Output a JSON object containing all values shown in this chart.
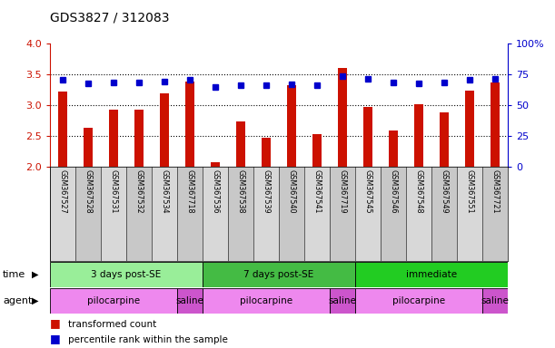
{
  "title": "GDS3827 / 312083",
  "samples": [
    "GSM367527",
    "GSM367528",
    "GSM367531",
    "GSM367532",
    "GSM367534",
    "GSM367718",
    "GSM367536",
    "GSM367538",
    "GSM367539",
    "GSM367540",
    "GSM367541",
    "GSM367719",
    "GSM367545",
    "GSM367546",
    "GSM367548",
    "GSM367549",
    "GSM367551",
    "GSM367721"
  ],
  "bar_values": [
    3.22,
    2.63,
    2.93,
    2.93,
    3.19,
    3.39,
    2.08,
    2.74,
    2.48,
    3.32,
    2.54,
    3.61,
    2.98,
    2.59,
    3.01,
    2.88,
    3.23,
    3.37
  ],
  "dot_values": [
    3.42,
    3.35,
    3.37,
    3.37,
    3.39,
    3.41,
    3.29,
    3.32,
    3.33,
    3.34,
    3.33,
    3.47,
    3.43,
    3.37,
    3.36,
    3.37,
    3.41,
    3.43
  ],
  "bar_color": "#cc1100",
  "dot_color": "#0000cc",
  "ylim_left": [
    2.0,
    4.0
  ],
  "ylim_right": [
    0,
    100
  ],
  "yticks_left": [
    2.0,
    2.5,
    3.0,
    3.5,
    4.0
  ],
  "yticks_right": [
    0,
    25,
    50,
    75,
    100
  ],
  "ytick_labels_right": [
    "0",
    "25",
    "50",
    "75",
    "100%"
  ],
  "hlines": [
    2.5,
    3.0,
    3.5
  ],
  "time_groups": [
    {
      "label": "3 days post-SE",
      "start": 0,
      "end": 5,
      "color": "#99ee99"
    },
    {
      "label": "7 days post-SE",
      "start": 6,
      "end": 11,
      "color": "#44bb44"
    },
    {
      "label": "immediate",
      "start": 12,
      "end": 17,
      "color": "#22cc22"
    }
  ],
  "agent_groups": [
    {
      "label": "pilocarpine",
      "start": 0,
      "end": 4,
      "color": "#ee88ee"
    },
    {
      "label": "saline",
      "start": 5,
      "end": 5,
      "color": "#cc55cc"
    },
    {
      "label": "pilocarpine",
      "start": 6,
      "end": 10,
      "color": "#ee88ee"
    },
    {
      "label": "saline",
      "start": 11,
      "end": 11,
      "color": "#cc55cc"
    },
    {
      "label": "pilocarpine",
      "start": 12,
      "end": 16,
      "color": "#ee88ee"
    },
    {
      "label": "saline",
      "start": 17,
      "end": 17,
      "color": "#cc55cc"
    }
  ],
  "legend_bar_label": "transformed count",
  "legend_dot_label": "percentile rank within the sample",
  "background_color": "#ffffff"
}
